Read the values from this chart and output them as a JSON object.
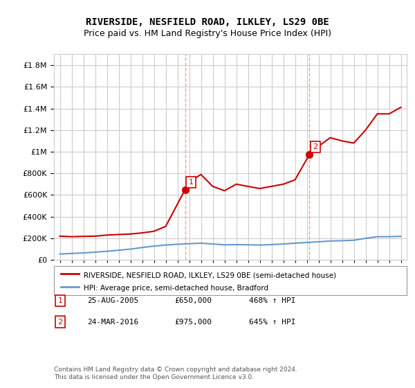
{
  "title": "RIVERSIDE, NESFIELD ROAD, ILKLEY, LS29 0BE",
  "subtitle": "Price paid vs. HM Land Registry's House Price Index (HPI)",
  "legend_line1": "RIVERSIDE, NESFIELD ROAD, ILKLEY, LS29 0BE (semi-detached house)",
  "legend_line2": "HPI: Average price, semi-detached house, Bradford",
  "footnote": "Contains HM Land Registry data © Crown copyright and database right 2024.\nThis data is licensed under the Open Government Licence v3.0.",
  "sale1_date": "25-AUG-2005",
  "sale1_price": 650000,
  "sale1_pct": "468% ↑ HPI",
  "sale1_year": 2005.65,
  "sale2_date": "24-MAR-2016",
  "sale2_price": 975000,
  "sale2_pct": "645% ↑ HPI",
  "sale2_year": 2016.23,
  "ylim": [
    0,
    1900000
  ],
  "xlim_start": 1995,
  "xlim_end": 2024.5,
  "red_color": "#cc0000",
  "blue_color": "#6699cc",
  "marker_box_color": "#cc0000",
  "vline_color": "#ff9999",
  "grid_color": "#cccccc",
  "bg_color": "#ffffff",
  "red_hpi_years": [
    1995,
    1996,
    1997,
    1998,
    1999,
    2000,
    2001,
    2002,
    2003,
    2004,
    2005.65,
    2006,
    2007,
    2008,
    2009,
    2010,
    2011,
    2012,
    2013,
    2014,
    2015,
    2016.23,
    2017,
    2018,
    2019,
    2020,
    2021,
    2022,
    2023,
    2024
  ],
  "red_hpi_values": [
    220000,
    215000,
    218000,
    220000,
    230000,
    235000,
    240000,
    250000,
    265000,
    310000,
    650000,
    720000,
    790000,
    680000,
    640000,
    700000,
    680000,
    660000,
    680000,
    700000,
    740000,
    975000,
    1050000,
    1130000,
    1100000,
    1080000,
    1200000,
    1350000,
    1350000,
    1410000
  ],
  "blue_hpi_years": [
    1995,
    1996,
    1997,
    1998,
    1999,
    2000,
    2001,
    2002,
    2003,
    2004,
    2005,
    2006,
    2007,
    2008,
    2009,
    2010,
    2011,
    2012,
    2013,
    2014,
    2015,
    2016,
    2017,
    2018,
    2019,
    2020,
    2021,
    2022,
    2023,
    2024
  ],
  "blue_hpi_values": [
    55000,
    60000,
    65000,
    72000,
    80000,
    90000,
    100000,
    115000,
    128000,
    138000,
    145000,
    150000,
    155000,
    148000,
    140000,
    142000,
    140000,
    138000,
    142000,
    148000,
    155000,
    162000,
    168000,
    175000,
    178000,
    182000,
    200000,
    215000,
    215000,
    218000
  ]
}
